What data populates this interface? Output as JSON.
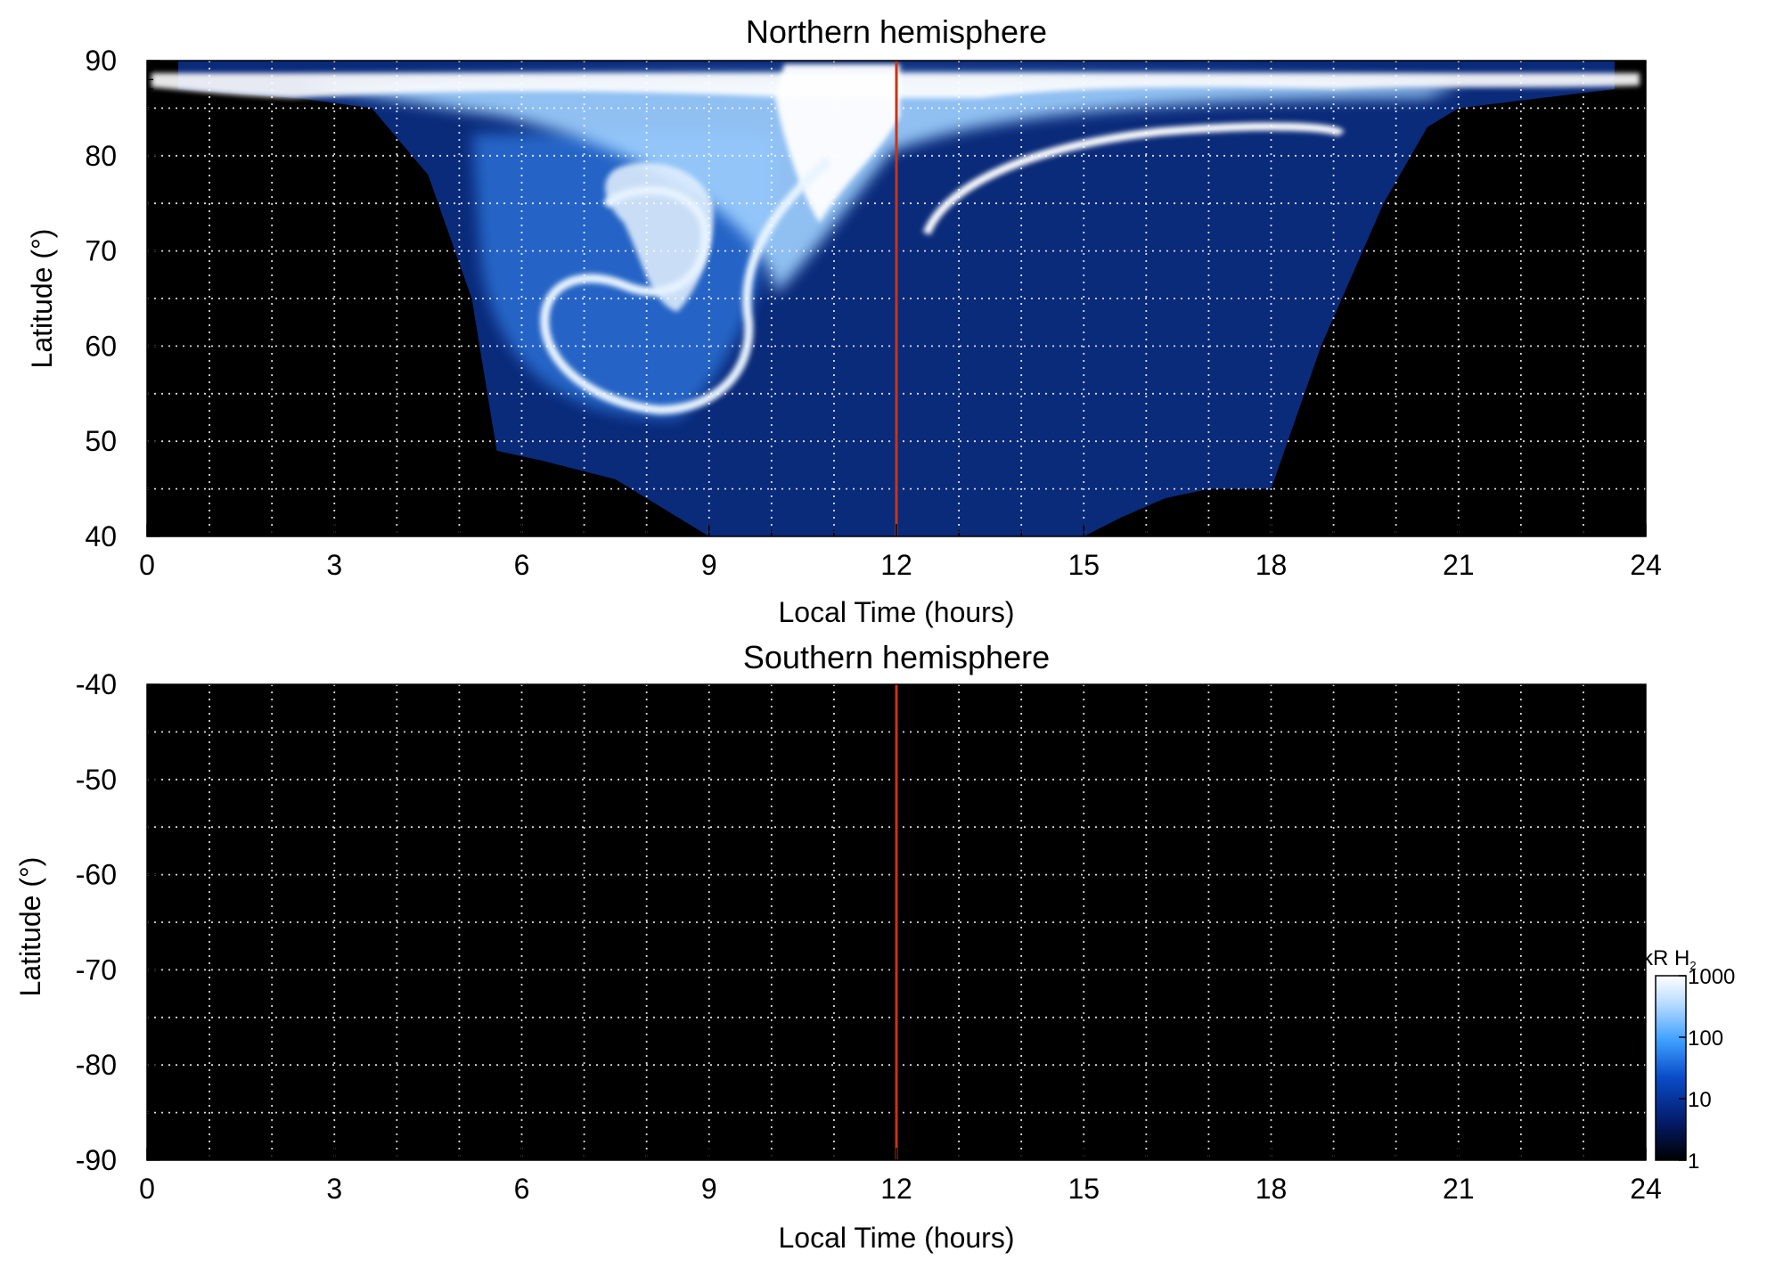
{
  "chart_data": [
    {
      "type": "heatmap",
      "title": "Northern hemisphere",
      "xlabel": "Local Time (hours)",
      "ylabel": "Latitude (°)",
      "xlim": [
        0,
        24
      ],
      "ylim": [
        40,
        90
      ],
      "x_ticks": [
        0,
        3,
        6,
        9,
        12,
        15,
        18,
        21,
        24
      ],
      "y_ticks": [
        40,
        50,
        60,
        70,
        80,
        90
      ],
      "grid": true,
      "marker_line": {
        "x": 12,
        "color": "#cc3311"
      },
      "coverage_boundary": {
        "local_time": [
          0.5,
          2.5,
          3.6,
          4.5,
          5.2,
          5.6,
          6.3,
          7.5,
          8.5,
          9.0,
          12.0,
          15.0,
          15.6,
          16.3,
          17.0,
          18.0,
          18.8,
          19.8,
          20.5,
          21.0,
          23.5
        ],
        "lower_latitude": [
          87,
          86,
          85,
          78,
          65,
          49,
          48,
          46,
          42,
          40,
          40,
          40,
          42,
          44,
          45,
          45,
          60,
          75,
          83,
          85,
          87
        ]
      },
      "features": [
        {
          "label": "bright spiral auroral arc",
          "local_time": [
            6.0,
            10.0
          ],
          "latitude": [
            52,
            80
          ],
          "level_kR": 1000
        },
        {
          "label": "bright arc",
          "local_time": [
            12.5,
            19.0
          ],
          "latitude": [
            72,
            83
          ],
          "level_kR": 1000
        },
        {
          "label": "noon polar cap emission",
          "local_time": [
            10.0,
            12.0
          ],
          "latitude": [
            75,
            90
          ],
          "level_kR": 1000
        }
      ]
    },
    {
      "type": "heatmap",
      "title": "Southern hemisphere",
      "xlabel": "Local Time (hours)",
      "ylabel": "Latitude (°)",
      "xlim": [
        0,
        24
      ],
      "ylim": [
        -90,
        -40
      ],
      "x_ticks": [
        0,
        3,
        6,
        9,
        12,
        15,
        18,
        21,
        24
      ],
      "y_ticks": [
        -40,
        -50,
        -60,
        -70,
        -80,
        -90
      ],
      "grid": true,
      "marker_line": {
        "x": 12,
        "color": "#cc3311"
      },
      "features": []
    }
  ],
  "colorbar": {
    "label_main": "kR H",
    "label_sub": "2",
    "scale": "log",
    "range": [
      1,
      1000
    ],
    "ticks": [
      "1000",
      "100",
      "10",
      "1"
    ],
    "colors": [
      "#000000",
      "#031a66",
      "#0a4cc8",
      "#3ea0ff",
      "#b8dcff",
      "#ffffff"
    ]
  }
}
